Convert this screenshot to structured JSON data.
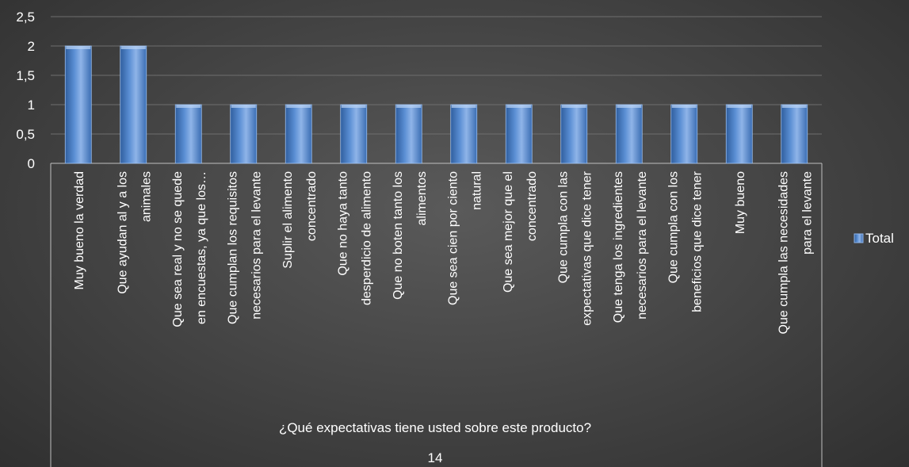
{
  "chart_data": {
    "type": "bar",
    "categories": [
      [
        "Muy bueno la verdad"
      ],
      [
        "Que ayudan al  y a los",
        "animales"
      ],
      [
        "Que sea real y no se quede",
        "en encuestas, ya que los…"
      ],
      [
        "Que cumplan los requisitos",
        "necesarios para el levante"
      ],
      [
        "Suplir el alimento",
        "concentrado"
      ],
      [
        "Que no haya tanto",
        "desperdicio de alimento"
      ],
      [
        "Que  no boten tanto los",
        "alimentos"
      ],
      [
        "Que sea cien por ciento",
        "natural"
      ],
      [
        "Que sea mejor que el",
        "concentrado"
      ],
      [
        "Que cumpla con las",
        "expectativas que dice tener"
      ],
      [
        "Que tenga los ingredientes",
        "necesarios para el levante"
      ],
      [
        "Que cumpla con los",
        "beneficios que dice tener"
      ],
      [
        "Muy bueno"
      ],
      [
        "Que cumpla las necesidades",
        "para el levante"
      ]
    ],
    "series": [
      {
        "name": "Total",
        "values": [
          2,
          2,
          1,
          1,
          1,
          1,
          1,
          1,
          1,
          1,
          1,
          1,
          1,
          1
        ]
      }
    ],
    "ylim": [
      0,
      2.5
    ],
    "yticks": [
      "0",
      "0,5",
      "1",
      "1,5",
      "2",
      "2,5"
    ],
    "xlabel": "¿Qué expectativas tiene usted sobre este producto?",
    "group_label": "14",
    "grid": true,
    "legend": "right",
    "colors": {
      "bar": "#4f81bd",
      "bar_light": "#8fb4e8",
      "bar_dark": "#2f5e9e",
      "grid": "#6e6e6e",
      "axis": "#bfbfbf"
    }
  }
}
